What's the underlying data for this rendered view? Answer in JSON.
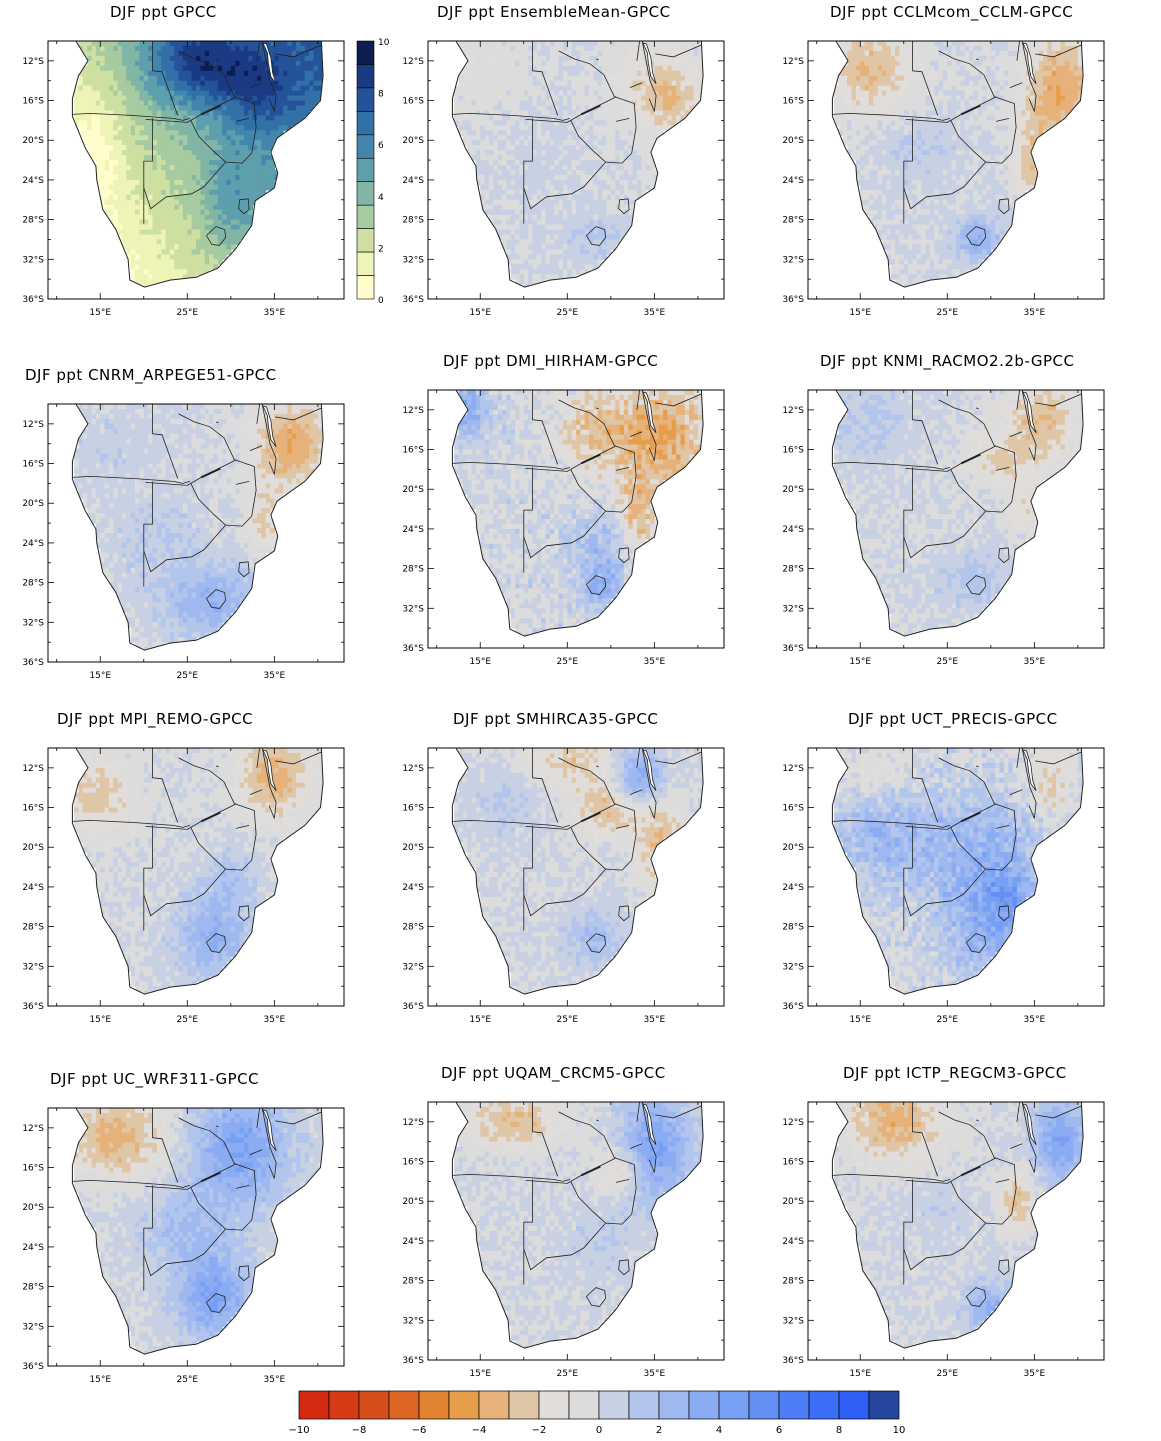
{
  "panels": [
    {
      "title": "DJF ppt GPCC",
      "kind": "abs"
    },
    {
      "title": "DJF ppt EnsembleMean-GPCC",
      "kind": "diff",
      "pattern": "ensemble"
    },
    {
      "title": "DJF ppt CCLMcom_CCLM-GPCC",
      "kind": "diff",
      "pattern": "cclm"
    },
    {
      "title": "DJF ppt CNRM_ARPEGE51-GPCC",
      "kind": "diff",
      "pattern": "cnrm"
    },
    {
      "title": "DJF ppt  DMI_HIRHAM-GPCC",
      "kind": "diff",
      "pattern": "dmi"
    },
    {
      "title": "DJF ppt  KNMI_RACMO2.2b-GPCC",
      "kind": "diff",
      "pattern": "knmi"
    },
    {
      "title": "DJF ppt MPI_REMO-GPCC",
      "kind": "diff",
      "pattern": "mpi"
    },
    {
      "title": "DJF ppt SMHIRCA35-GPCC",
      "kind": "diff",
      "pattern": "smhi"
    },
    {
      "title": "DJF ppt UCT_PRECIS-GPCC",
      "kind": "diff",
      "pattern": "uct"
    },
    {
      "title": "DJF ppt UC_WRF311-GPCC",
      "kind": "diff",
      "pattern": "wrf"
    },
    {
      "title": "DJF ppt UQAM_CRCM5-GPCC",
      "kind": "diff",
      "pattern": "uqam"
    },
    {
      "title": "DJF ppt ICTP_REGCM3-GPCC",
      "kind": "diff",
      "pattern": "ictp"
    }
  ],
  "axes": {
    "lat_ticks": [
      "12°S",
      "16°S",
      "20°S",
      "24°S",
      "28°S",
      "32°S",
      "36°S"
    ],
    "lon_ticks": [
      "15°E",
      "25°E",
      "35°E"
    ]
  },
  "abs_colorbar": {
    "labels": [
      "10",
      "8",
      "6",
      "4",
      "2",
      "0"
    ],
    "colors": [
      "#0d1d4f",
      "#1a3a84",
      "#24539a",
      "#3270a8",
      "#4386ad",
      "#5e9fae",
      "#81b6a6",
      "#a7cba0",
      "#cde0a2",
      "#eef4b8",
      "#fffdcb"
    ]
  },
  "diff_colorbar": {
    "labels": [
      "−10",
      "−8",
      "−6",
      "−4",
      "−2",
      "0",
      "2",
      "4",
      "6",
      "8",
      "10"
    ],
    "colors": [
      "#d42a12",
      "#d53b15",
      "#d74e1b",
      "#de6625",
      "#e1832f",
      "#e69e4d",
      "#e6b27a",
      "#dfc6a6",
      "#e0ddda",
      "#dcdcdc",
      "#c8d1e3",
      "#b2c5ec",
      "#9fb9f0",
      "#8aacf2",
      "#779ff4",
      "#648ff5",
      "#4d7ef7",
      "#3c6ff7",
      "#2e60f5",
      "#26469e"
    ]
  }
}
